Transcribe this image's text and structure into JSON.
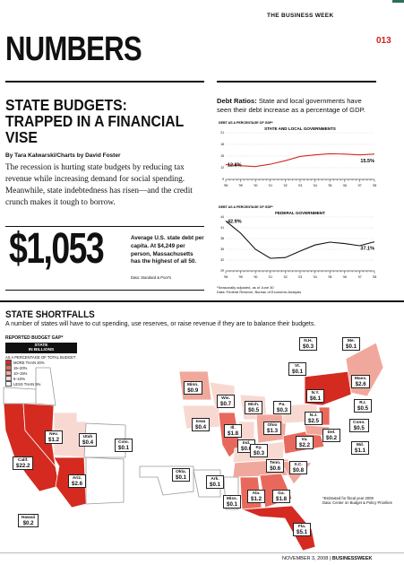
{
  "header": {
    "publication": "THE BUSINESS WEEK",
    "page_number": "013",
    "section_title": "NUMBERS"
  },
  "article": {
    "title": "STATE BUDGETS: TRAPPED IN A FINANCIAL VISE",
    "byline": "By Tara Kalwarski/Charts by David Foster",
    "dek": "The recession is hurting state budgets by reducing tax revenue while increasing demand for social spending. Meanwhile, state indebtedness has risen—and the credit crunch makes it tough to borrow."
  },
  "stat": {
    "value": "$1,053",
    "text": "Average U.S. state debt per capita. At $4,249 per person, Massachusetts has the highest of all 50.",
    "source": "Data: Standard & Poor's"
  },
  "debt": {
    "heading_bold": "Debt Ratios:",
    "heading_rest": " State and local governments have seen their debt increase as a percentage of GDP.",
    "notes": [
      "*Seasonally adjusted, as of June 30",
      "Data: Federal Reserve, Bureau of Economic Analysis"
    ]
  },
  "chart_data": [
    {
      "type": "line",
      "title": "STATE AND LOCAL GOVERNMENTS",
      "ylabel": "DEBT AS A PERCENTAGE OF GDP*",
      "x": [
        "'98",
        "'99",
        "'00",
        "'01",
        "'02",
        "'03",
        "'04",
        "'05",
        "'06",
        "'07",
        "'08"
      ],
      "ylim": [
        9,
        21
      ],
      "yticks": [
        "9",
        "12",
        "15",
        "18",
        "21"
      ],
      "values": [
        12.8,
        12.5,
        12.3,
        12.9,
        13.8,
        14.9,
        15.3,
        15.6,
        15.5,
        15.3,
        15.5
      ],
      "start_label": "12.8%",
      "end_label": "15.5%"
    },
    {
      "type": "line",
      "title": "FEDERAL GOVERNMENT",
      "ylabel": "DEBT AS A PERCENTAGE OF GDP*",
      "x": [
        "'98",
        "'99",
        "'00",
        "'01",
        "'02",
        "'03",
        "'04",
        "'05",
        "'06",
        "'07",
        "'08"
      ],
      "ylim": [
        29,
        44
      ],
      "yticks": [
        "29",
        "32",
        "35",
        "38",
        "41",
        "44"
      ],
      "values": [
        42.9,
        39.5,
        35.0,
        32.5,
        32.7,
        34.5,
        36.2,
        37.0,
        36.6,
        36.0,
        37.1
      ],
      "start_label": "42.9%",
      "end_label": "37.1%"
    }
  ],
  "shortfalls": {
    "title": "STATE SHORTFALLS",
    "subtitle": "A number of states will have to cut spending, use reserves, or raise revenue if they are to balance their budgets.",
    "legend_title": "REPORTED BUDGET GAP*",
    "legend_bar": "STATE\nIN BILLIONS",
    "legend_caption": "AS A PERCENTAGE OF TOTAL BUDGET",
    "legend_items": [
      {
        "label": "MORE THAN 20%",
        "color": "#d42a20"
      },
      {
        "label": "15–20%",
        "color": "#e8695b"
      },
      {
        "label": "10–15%",
        "color": "#f1a89c"
      },
      {
        "label": "5–10%",
        "color": "#f8d9d2"
      },
      {
        "label": "LESS THAN 5%",
        "color": "#ffffff"
      }
    ],
    "states": [
      {
        "name": "Calif.",
        "value": "$22.2"
      },
      {
        "name": "Nev.",
        "value": "$1.2"
      },
      {
        "name": "Ariz.",
        "value": "$2.6"
      },
      {
        "name": "Utah",
        "value": "$0.4"
      },
      {
        "name": "Colo.",
        "value": "$0.1"
      },
      {
        "name": "Minn.",
        "value": "$0.9"
      },
      {
        "name": "Iowa",
        "value": "$0.4"
      },
      {
        "name": "Okla.",
        "value": "$0.1"
      },
      {
        "name": "Ark.",
        "value": "$0.1"
      },
      {
        "name": "Wis.",
        "value": "$0.7"
      },
      {
        "name": "Ill.",
        "value": "$1.8"
      },
      {
        "name": "Mich.",
        "value": "$0.5"
      },
      {
        "name": "Ind.",
        "value": "$0.6"
      },
      {
        "name": "Ohio",
        "value": "$1.3"
      },
      {
        "name": "Ky.",
        "value": "$0.3"
      },
      {
        "name": "Tenn.",
        "value": "$0.6"
      },
      {
        "name": "Miss.",
        "value": "$0.1"
      },
      {
        "name": "Ala.",
        "value": "$1.2"
      },
      {
        "name": "Ga.",
        "value": "$1.8"
      },
      {
        "name": "Fla.",
        "value": "$5.1"
      },
      {
        "name": "S.C.",
        "value": "$0.8"
      },
      {
        "name": "Va.",
        "value": "$2.2"
      },
      {
        "name": "Pa.",
        "value": "$0.3"
      },
      {
        "name": "N.Y.",
        "value": "$6.1"
      },
      {
        "name": "N.J.",
        "value": "$2.5"
      },
      {
        "name": "Del.",
        "value": "$0.2"
      },
      {
        "name": "Md.",
        "value": "$1.1"
      },
      {
        "name": "Conn.",
        "value": "$0.5"
      },
      {
        "name": "R.I.",
        "value": "$0.5"
      },
      {
        "name": "Mass.",
        "value": "$2.6"
      },
      {
        "name": "Vt.",
        "value": "$0.1"
      },
      {
        "name": "N.H.",
        "value": "$0.3"
      },
      {
        "name": "Me.",
        "value": "$0.1"
      },
      {
        "name": "Hawaii",
        "value": "$0.2"
      }
    ],
    "note": [
      "*Estimated for fiscal year 2009",
      "Data: Center on Budget & Policy Priorities"
    ]
  },
  "footer": {
    "date": "NOVEMBER 3, 2008 | ",
    "brand": "BUSINESSWEEK"
  }
}
